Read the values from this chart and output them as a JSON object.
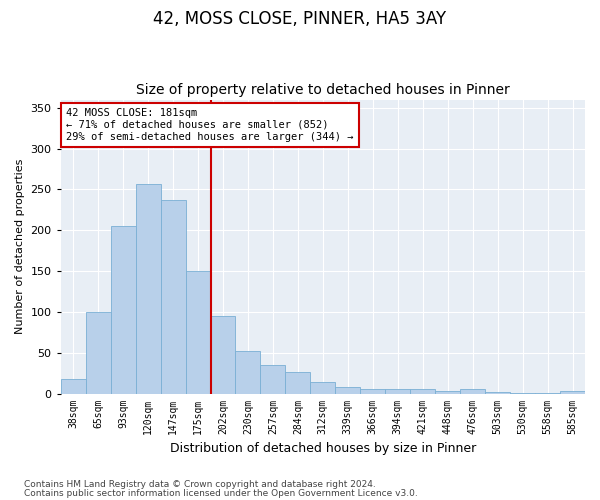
{
  "title": "42, MOSS CLOSE, PINNER, HA5 3AY",
  "subtitle": "Size of property relative to detached houses in Pinner",
  "xlabel": "Distribution of detached houses by size in Pinner",
  "ylabel": "Number of detached properties",
  "categories": [
    "38sqm",
    "65sqm",
    "93sqm",
    "120sqm",
    "147sqm",
    "175sqm",
    "202sqm",
    "230sqm",
    "257sqm",
    "284sqm",
    "312sqm",
    "339sqm",
    "366sqm",
    "394sqm",
    "421sqm",
    "448sqm",
    "476sqm",
    "503sqm",
    "530sqm",
    "558sqm",
    "585sqm"
  ],
  "values": [
    18,
    100,
    205,
    257,
    237,
    150,
    95,
    52,
    35,
    26,
    14,
    8,
    6,
    5,
    5,
    3,
    6,
    2,
    1,
    1,
    3
  ],
  "bar_color": "#b8d0ea",
  "bar_edge_color": "#7aafd4",
  "figure_bg": "#ffffff",
  "axes_bg": "#e8eef5",
  "grid_color": "#ffffff",
  "red_line_index": 5,
  "annotation_line1": "42 MOSS CLOSE: 181sqm",
  "annotation_line2": "← 71% of detached houses are smaller (852)",
  "annotation_line3": "29% of semi-detached houses are larger (344) →",
  "annotation_box_facecolor": "#ffffff",
  "annotation_box_edgecolor": "#cc0000",
  "red_line_color": "#cc0000",
  "ylim": [
    0,
    360
  ],
  "yticks": [
    0,
    50,
    100,
    150,
    200,
    250,
    300,
    350
  ],
  "footer_line1": "Contains HM Land Registry data © Crown copyright and database right 2024.",
  "footer_line2": "Contains public sector information licensed under the Open Government Licence v3.0."
}
